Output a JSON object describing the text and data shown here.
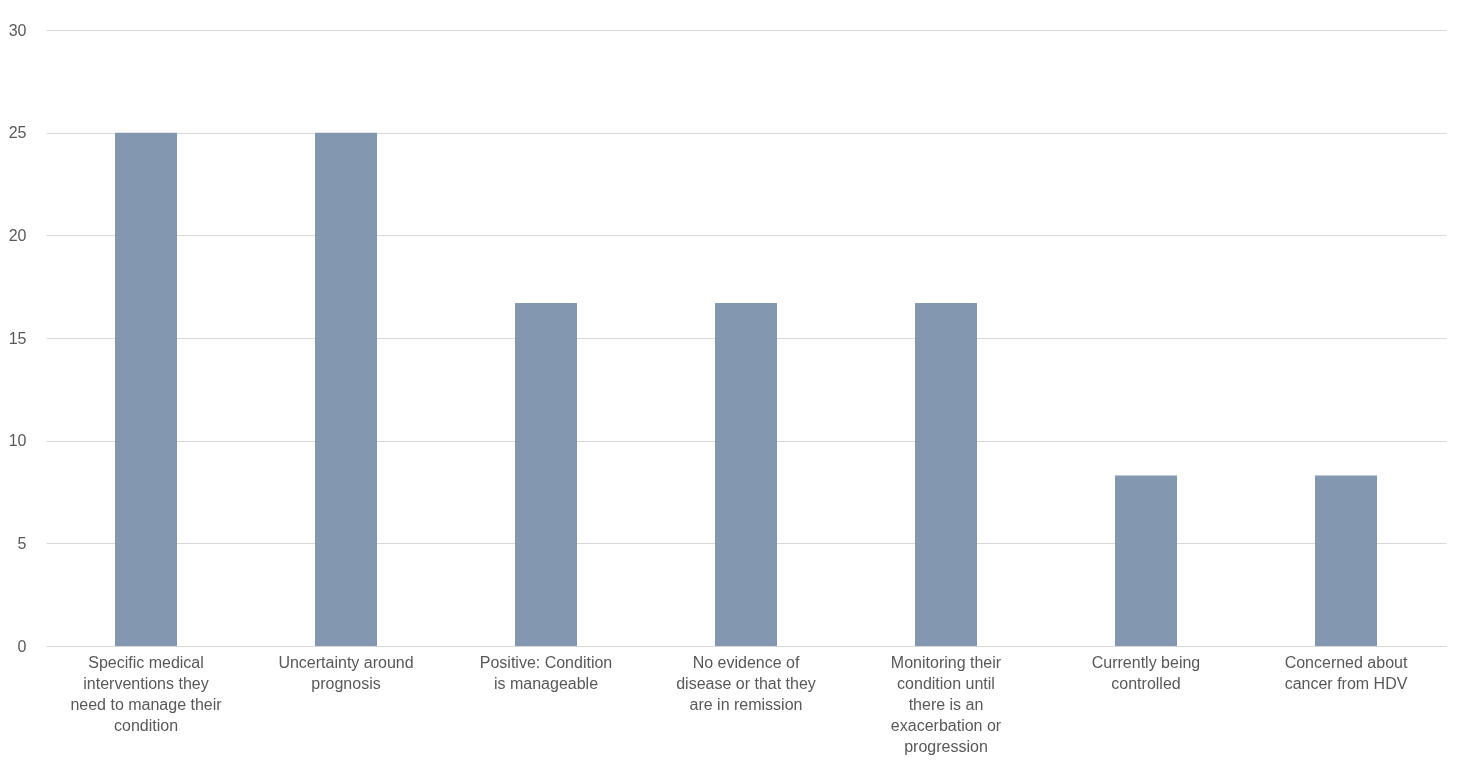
{
  "chart_data": {
    "type": "bar",
    "categories": [
      "Specific medical interventions they need to manage their condition",
      "Uncertainty around prognosis",
      "Positive: Condition is manageable",
      "No evidence of disease or that they are in remission",
      "Monitoring their condition until there is an exacerbation or progression",
      "Currently being controlled",
      "Concerned about cancer from HDV"
    ],
    "values": [
      25,
      25,
      16.7,
      16.7,
      16.7,
      8.3,
      8.3
    ],
    "color": "#8497b0",
    "ylim": [
      0,
      30
    ],
    "yticks": [
      0,
      5,
      10,
      15,
      20,
      25,
      30
    ],
    "grid": "y"
  }
}
